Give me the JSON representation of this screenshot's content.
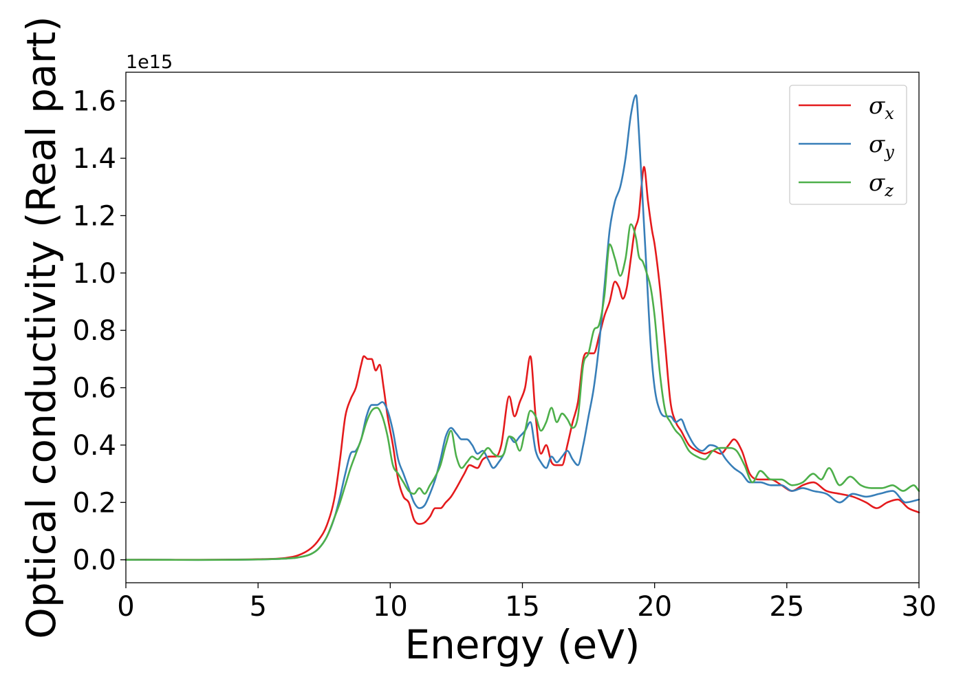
{
  "chart_data": {
    "type": "line",
    "title": "",
    "xlabel": "Energy (eV)",
    "ylabel": "Optical conductivity (Real part)",
    "y_offset_label": "1e15",
    "xlim": [
      0,
      30
    ],
    "ylim": [
      -0.08,
      1.7
    ],
    "xticks": [
      0,
      5,
      10,
      15,
      20,
      25,
      30
    ],
    "yticks": [
      0.0,
      0.2,
      0.4,
      0.6,
      0.8,
      1.0,
      1.2,
      1.4,
      1.6
    ],
    "grid": false,
    "legend_position": "top-right",
    "series": [
      {
        "name": "σx",
        "symbol": "σ",
        "subscript": "x",
        "color": "#e41a1c",
        "x": [
          0,
          5,
          6,
          6.5,
          7,
          7.3,
          7.6,
          7.9,
          8.1,
          8.3,
          8.5,
          8.7,
          8.9,
          9.0,
          9.15,
          9.3,
          9.45,
          9.6,
          9.75,
          9.9,
          10.1,
          10.3,
          10.5,
          10.7,
          10.9,
          11.1,
          11.3,
          11.5,
          11.7,
          11.9,
          12.1,
          12.3,
          12.5,
          12.8,
          13.0,
          13.3,
          13.5,
          13.8,
          14.0,
          14.2,
          14.5,
          14.7,
          14.9,
          15.1,
          15.3,
          15.5,
          15.7,
          15.9,
          16.1,
          16.3,
          16.5,
          16.7,
          16.9,
          17.1,
          17.3,
          17.5,
          17.7,
          17.9,
          18.1,
          18.3,
          18.5,
          18.65,
          18.8,
          18.95,
          19.1,
          19.25,
          19.4,
          19.5,
          19.6,
          19.75,
          19.9,
          20.0,
          20.2,
          20.4,
          20.6,
          20.8,
          21.0,
          21.3,
          21.6,
          21.9,
          22.2,
          22.5,
          22.8,
          23.0,
          23.3,
          23.6,
          24.0,
          24.4,
          24.8,
          25.2,
          25.6,
          26.0,
          26.5,
          27.0,
          27.5,
          28.0,
          28.4,
          28.8,
          29.2,
          29.6,
          30.0
        ],
        "y": [
          0,
          0.002,
          0.006,
          0.015,
          0.04,
          0.07,
          0.12,
          0.22,
          0.35,
          0.5,
          0.56,
          0.6,
          0.68,
          0.71,
          0.7,
          0.7,
          0.66,
          0.68,
          0.6,
          0.5,
          0.4,
          0.28,
          0.22,
          0.2,
          0.14,
          0.125,
          0.13,
          0.15,
          0.18,
          0.18,
          0.2,
          0.22,
          0.25,
          0.3,
          0.33,
          0.32,
          0.35,
          0.36,
          0.36,
          0.4,
          0.57,
          0.5,
          0.55,
          0.6,
          0.71,
          0.5,
          0.37,
          0.4,
          0.34,
          0.33,
          0.33,
          0.4,
          0.48,
          0.55,
          0.7,
          0.72,
          0.72,
          0.78,
          0.85,
          0.9,
          0.97,
          0.95,
          0.91,
          0.95,
          1.05,
          1.15,
          1.2,
          1.3,
          1.37,
          1.25,
          1.15,
          1.1,
          0.95,
          0.75,
          0.55,
          0.48,
          0.45,
          0.4,
          0.38,
          0.37,
          0.38,
          0.37,
          0.4,
          0.42,
          0.38,
          0.3,
          0.28,
          0.28,
          0.26,
          0.24,
          0.26,
          0.27,
          0.24,
          0.23,
          0.22,
          0.2,
          0.18,
          0.2,
          0.21,
          0.18,
          0.165
        ]
      },
      {
        "name": "σy",
        "symbol": "σ",
        "subscript": "y",
        "color": "#377eb8",
        "x": [
          0,
          5,
          6,
          6.5,
          7,
          7.3,
          7.6,
          7.9,
          8.1,
          8.3,
          8.5,
          8.7,
          8.9,
          9.1,
          9.3,
          9.5,
          9.7,
          9.9,
          10.1,
          10.3,
          10.5,
          10.7,
          10.9,
          11.1,
          11.3,
          11.5,
          11.7,
          11.9,
          12.1,
          12.3,
          12.5,
          12.7,
          12.9,
          13.1,
          13.3,
          13.5,
          13.7,
          13.9,
          14.1,
          14.3,
          14.5,
          14.7,
          14.9,
          15.1,
          15.3,
          15.5,
          15.7,
          15.9,
          16.1,
          16.3,
          16.5,
          16.7,
          16.9,
          17.1,
          17.3,
          17.5,
          17.7,
          17.9,
          18.1,
          18.3,
          18.5,
          18.7,
          18.9,
          19.1,
          19.3,
          19.4,
          19.55,
          19.7,
          19.85,
          20.0,
          20.2,
          20.4,
          20.6,
          20.8,
          21.0,
          21.2,
          21.5,
          21.8,
          22.1,
          22.4,
          22.7,
          23.0,
          23.3,
          23.6,
          24.0,
          24.4,
          24.8,
          25.2,
          25.6,
          26.0,
          26.5,
          27.0,
          27.5,
          28.0,
          28.5,
          29.0,
          29.5,
          30.0
        ],
        "y": [
          0,
          0.001,
          0.004,
          0.008,
          0.02,
          0.04,
          0.08,
          0.15,
          0.22,
          0.3,
          0.37,
          0.38,
          0.42,
          0.5,
          0.54,
          0.54,
          0.55,
          0.52,
          0.45,
          0.35,
          0.3,
          0.25,
          0.2,
          0.18,
          0.19,
          0.23,
          0.28,
          0.35,
          0.43,
          0.46,
          0.44,
          0.42,
          0.42,
          0.4,
          0.37,
          0.38,
          0.35,
          0.32,
          0.34,
          0.37,
          0.43,
          0.41,
          0.43,
          0.45,
          0.48,
          0.38,
          0.34,
          0.32,
          0.36,
          0.34,
          0.36,
          0.38,
          0.35,
          0.33,
          0.4,
          0.5,
          0.6,
          0.75,
          0.95,
          1.15,
          1.25,
          1.3,
          1.4,
          1.55,
          1.62,
          1.5,
          1.25,
          1.0,
          0.75,
          0.6,
          0.52,
          0.5,
          0.5,
          0.48,
          0.49,
          0.45,
          0.4,
          0.38,
          0.4,
          0.39,
          0.35,
          0.32,
          0.3,
          0.27,
          0.27,
          0.26,
          0.26,
          0.24,
          0.25,
          0.24,
          0.23,
          0.2,
          0.23,
          0.22,
          0.23,
          0.24,
          0.2,
          0.21
        ]
      },
      {
        "name": "σz",
        "symbol": "σ",
        "subscript": "z",
        "color": "#4daf4a",
        "x": [
          0,
          5,
          6,
          6.5,
          7,
          7.3,
          7.6,
          7.9,
          8.1,
          8.3,
          8.5,
          8.7,
          8.9,
          9.1,
          9.3,
          9.5,
          9.7,
          9.9,
          10.1,
          10.3,
          10.5,
          10.7,
          10.9,
          11.1,
          11.3,
          11.5,
          11.7,
          11.9,
          12.1,
          12.3,
          12.5,
          12.7,
          12.9,
          13.1,
          13.3,
          13.5,
          13.7,
          13.9,
          14.1,
          14.3,
          14.5,
          14.7,
          14.9,
          15.1,
          15.3,
          15.5,
          15.7,
          15.9,
          16.1,
          16.3,
          16.5,
          16.7,
          16.9,
          17.1,
          17.3,
          17.5,
          17.7,
          17.9,
          18.1,
          18.3,
          18.5,
          18.7,
          18.9,
          19.1,
          19.3,
          19.4,
          19.55,
          19.7,
          19.85,
          20.0,
          20.2,
          20.4,
          20.6,
          20.8,
          21.0,
          21.3,
          21.6,
          21.9,
          22.2,
          22.5,
          22.8,
          23.1,
          23.4,
          23.7,
          24.0,
          24.4,
          24.8,
          25.2,
          25.6,
          26.0,
          26.3,
          26.6,
          27.0,
          27.4,
          27.8,
          28.2,
          28.6,
          29.0,
          29.4,
          29.8,
          30.0
        ],
        "y": [
          0,
          0.001,
          0.004,
          0.008,
          0.02,
          0.04,
          0.08,
          0.15,
          0.2,
          0.26,
          0.32,
          0.37,
          0.42,
          0.48,
          0.52,
          0.53,
          0.5,
          0.43,
          0.33,
          0.3,
          0.27,
          0.24,
          0.23,
          0.25,
          0.23,
          0.26,
          0.29,
          0.33,
          0.4,
          0.45,
          0.36,
          0.32,
          0.34,
          0.36,
          0.35,
          0.37,
          0.39,
          0.37,
          0.36,
          0.37,
          0.43,
          0.42,
          0.38,
          0.45,
          0.52,
          0.5,
          0.45,
          0.48,
          0.53,
          0.48,
          0.51,
          0.49,
          0.46,
          0.5,
          0.68,
          0.72,
          0.8,
          0.82,
          0.92,
          1.1,
          1.05,
          0.99,
          1.05,
          1.17,
          1.12,
          1.06,
          1.04,
          1.0,
          0.95,
          0.85,
          0.65,
          0.52,
          0.48,
          0.45,
          0.43,
          0.38,
          0.36,
          0.35,
          0.38,
          0.39,
          0.39,
          0.38,
          0.33,
          0.27,
          0.31,
          0.28,
          0.28,
          0.26,
          0.27,
          0.3,
          0.28,
          0.32,
          0.26,
          0.29,
          0.26,
          0.25,
          0.25,
          0.26,
          0.24,
          0.26,
          0.24
        ]
      }
    ]
  }
}
